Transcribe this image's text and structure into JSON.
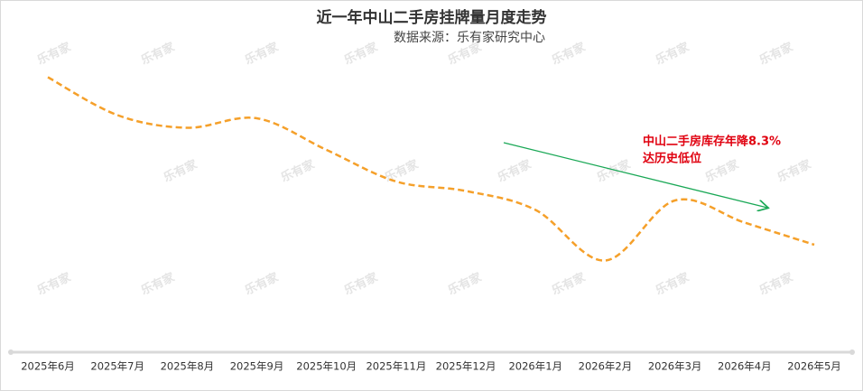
{
  "chart_data": {
    "type": "line",
    "title": "近一年中山二手房挂牌量月度走势",
    "subtitle": "数据来源：乐有家研究中心",
    "categories": [
      "2025年6月",
      "2025年7月",
      "2025年8月",
      "2025年9月",
      "2025年10月",
      "2025年11月",
      "2025年12月",
      "2026年1月",
      "2026年2月",
      "2026年3月",
      "2026年4月",
      "2026年5月"
    ],
    "series": [
      {
        "name": "挂牌量",
        "color": "#f5a02a",
        "values": [
          87,
          75,
          71,
          74,
          64,
          54,
          51,
          45,
          29,
          48,
          41,
          34
        ]
      }
    ],
    "ylim": [
      0,
      100
    ],
    "annotations": [
      "中山二手房库存年降8.3%",
      "达历史低位"
    ],
    "watermark": "乐有家"
  }
}
